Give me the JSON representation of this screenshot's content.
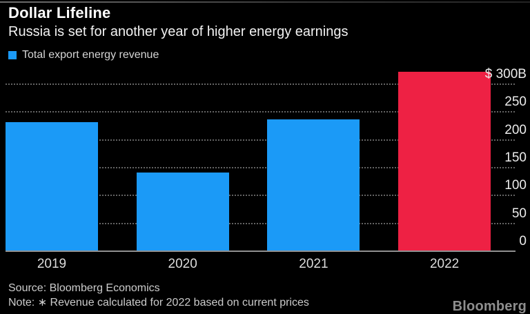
{
  "header": {
    "title": "Dollar Lifeline",
    "subtitle": "Russia is set for another year of higher energy earnings"
  },
  "legend": {
    "label": "Total export energy revenue",
    "swatch_color": "#1b9af7"
  },
  "chart_data": {
    "type": "bar",
    "title": "Dollar Lifeline",
    "subtitle": "Russia is set for another year of higher energy earnings",
    "categories": [
      "2019",
      "2020",
      "2021",
      "2022"
    ],
    "series": [
      {
        "name": "Total export energy revenue",
        "values": [
          230,
          140,
          235,
          321
        ]
      }
    ],
    "bar_colors": [
      "#1b9af7",
      "#1b9af7",
      "#1b9af7",
      "#ee2144"
    ],
    "highlight_category": "2022",
    "ylim": [
      0,
      331
    ],
    "yticks": [
      0,
      50,
      100,
      150,
      200,
      250,
      300
    ],
    "ytick_labels": [
      "0",
      "50",
      "100",
      "150",
      "200",
      "250",
      "$ 300B"
    ],
    "axis_side": "right",
    "grid": "horizontal-dotted",
    "legend_position": "top-left"
  },
  "footer": {
    "source": "Source: Bloomberg Economics",
    "note": "Note: ∗ Revenue calculated for 2022 based on current prices",
    "logo": "Bloomberg"
  },
  "colors": {
    "background": "#000000",
    "bar_blue": "#1b9af7",
    "bar_red": "#ee2144",
    "gridline": "#646464",
    "axis_line": "#919191",
    "title_text": "#ffffff",
    "muted_text": "#cccccc",
    "logo_gray": "#8e8e8e"
  }
}
